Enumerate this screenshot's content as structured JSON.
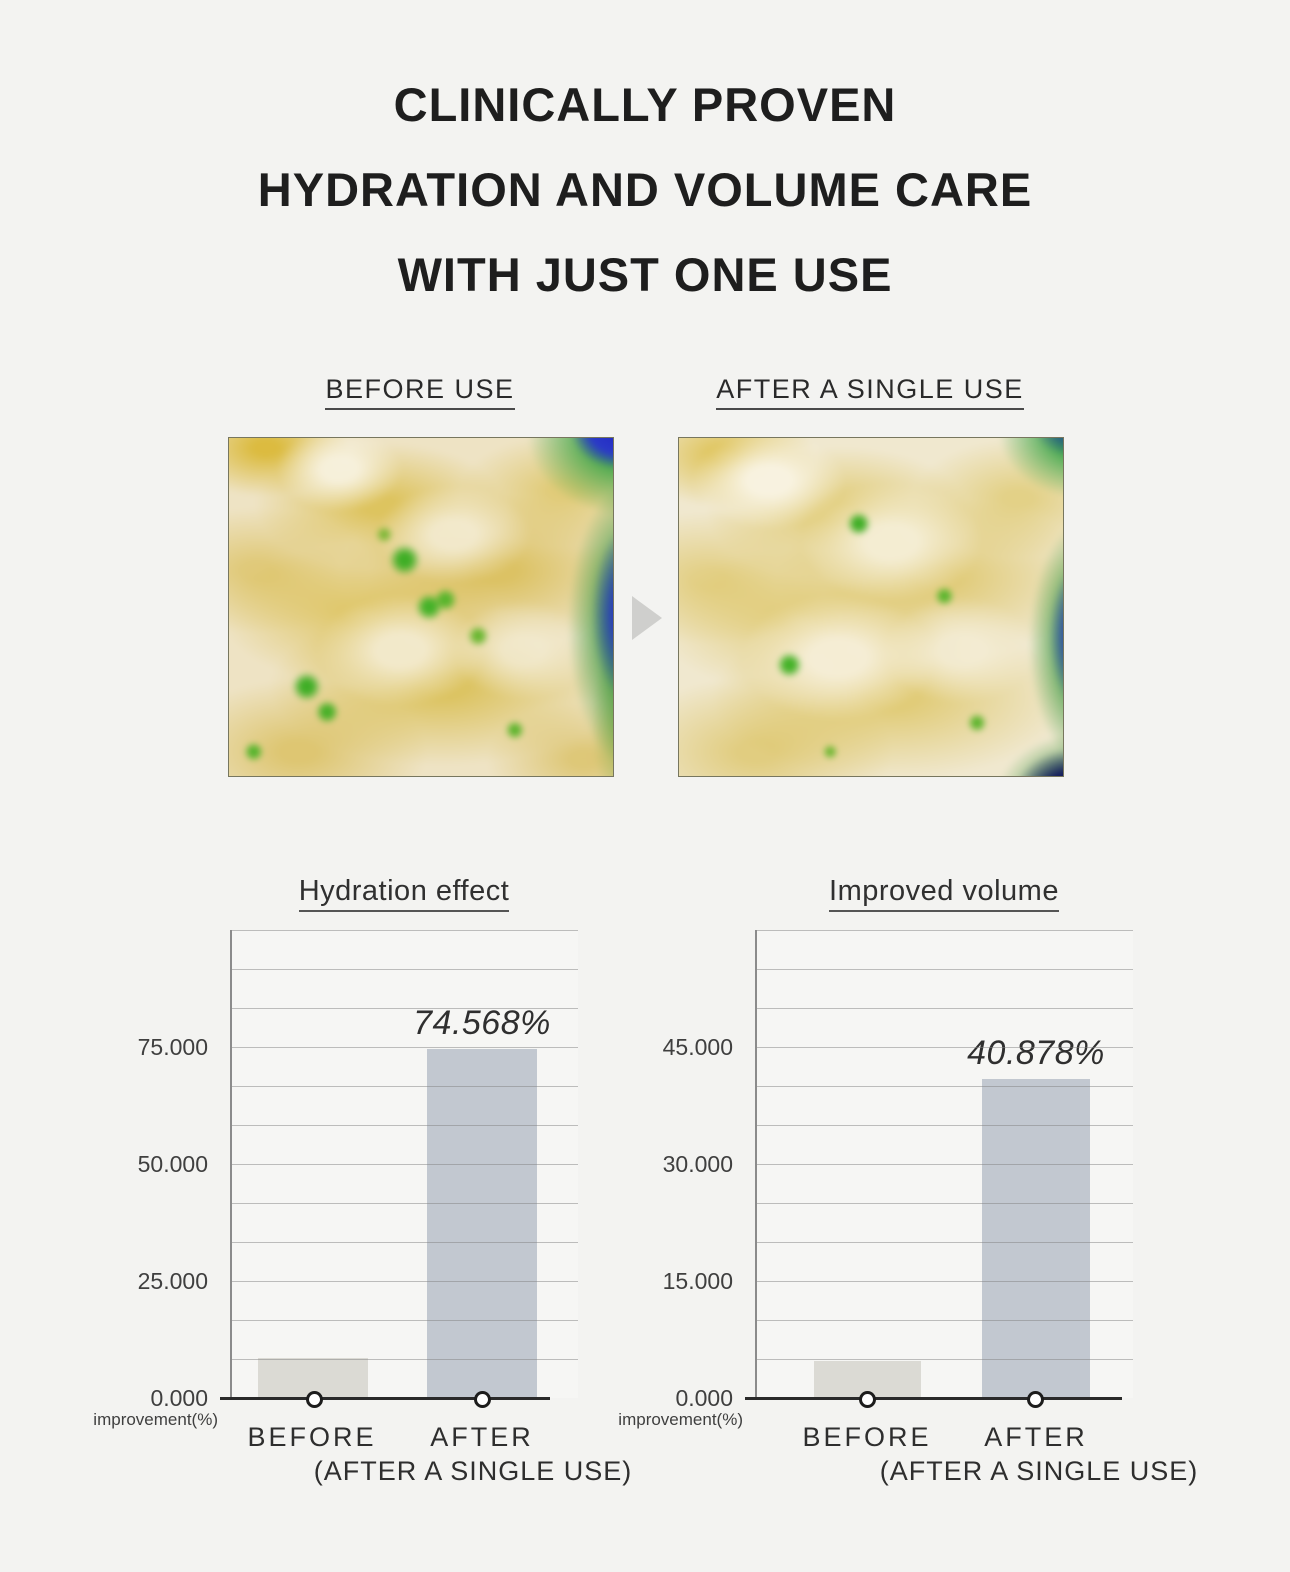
{
  "title": {
    "line1": "CLINICALLY PROVEN",
    "line2": "HYDRATION AND VOLUME CARE",
    "line3": "WITH JUST ONE USE"
  },
  "comparison": {
    "before_label": "BEFORE USE",
    "after_label": "AFTER A SINGLE USE",
    "before_photo": "skin-scan-before",
    "after_photo": "skin-scan-after",
    "arrow_icon": "right-arrow"
  },
  "chart_data": [
    {
      "type": "bar",
      "title": "Hydration effect",
      "categories": [
        "BEFORE",
        "AFTER"
      ],
      "values": [
        8.5,
        74.568
      ],
      "value_labels": [
        "",
        "74.568%"
      ],
      "ylabel": "improvement(%)",
      "yticks": [
        "0.000",
        "25.000",
        "50.000",
        "75.000"
      ],
      "ylim": [
        0,
        100
      ],
      "gridline_interval": 8.333,
      "footnote": "(AFTER A SINGLE USE)",
      "legend": "none",
      "bar_colors": {
        "before": "#dbdad4",
        "after": "#c2c8d0"
      }
    },
    {
      "type": "bar",
      "title": "Improved volume",
      "categories": [
        "BEFORE",
        "AFTER"
      ],
      "values": [
        4.8,
        40.878
      ],
      "value_labels": [
        "",
        "40.878%"
      ],
      "ylabel": "improvement(%)",
      "yticks": [
        "0.000",
        "15.000",
        "30.000",
        "45.000"
      ],
      "ylim": [
        0,
        60
      ],
      "gridline_interval": 5,
      "footnote": "(AFTER A SINGLE USE)",
      "legend": "none",
      "bar_colors": {
        "before": "#dbdad4",
        "after": "#c2c8d0"
      }
    }
  ],
  "colors": {
    "page_background": "#f3f3f1",
    "plot_background": "#f6f6f4",
    "before_bar": "#dbdad4",
    "after_bar": "#c2c8d0",
    "axis_line": "#2a2a2a",
    "text": "#1e1e1e"
  }
}
